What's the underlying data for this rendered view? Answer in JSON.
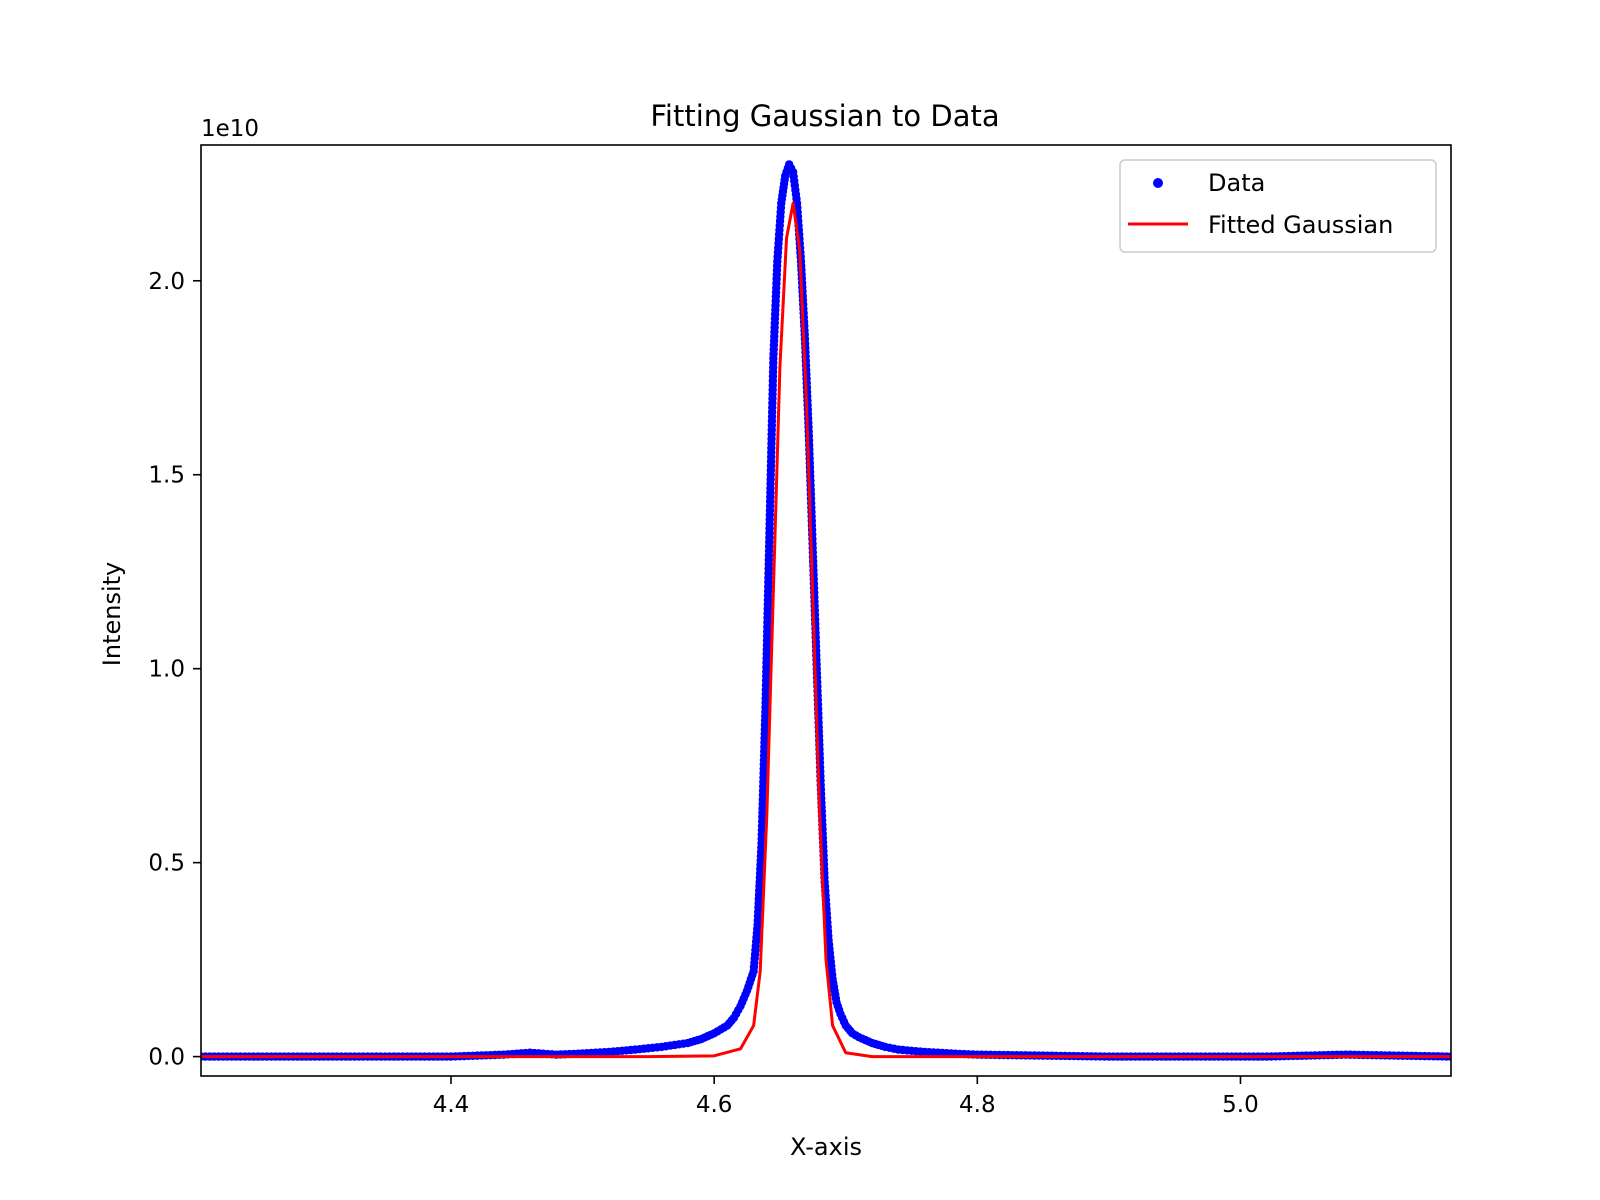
{
  "chart_data": {
    "type": "line",
    "title": "Fitting Gaussian to Data",
    "xlabel": "X-axis",
    "ylabel": "Intensity",
    "y_offset_text": "1e10",
    "xlim": [
      4.21,
      5.16
    ],
    "ylim": [
      -0.05,
      2.35
    ],
    "grid": false,
    "legend_placement": "top-right",
    "x_ticks": [
      4.4,
      4.6,
      4.8,
      5.0
    ],
    "x_tick_labels": [
      "4.4",
      "4.6",
      "4.8",
      "5.0"
    ],
    "y_ticks": [
      0.0,
      0.5,
      1.0,
      1.5,
      2.0
    ],
    "y_tick_labels": [
      "0.0",
      "0.5",
      "1.0",
      "1.5",
      "2.0"
    ],
    "series": [
      {
        "name": "Data",
        "kind": "scatter",
        "color": "#0000ff",
        "x": [
          4.21,
          4.24,
          4.28,
          4.32,
          4.36,
          4.4,
          4.44,
          4.46,
          4.48,
          4.5,
          4.52,
          4.54,
          4.56,
          4.58,
          4.59,
          4.6,
          4.61,
          4.615,
          4.62,
          4.625,
          4.63,
          4.633,
          4.636,
          4.639,
          4.642,
          4.645,
          4.648,
          4.651,
          4.654,
          4.657,
          4.66,
          4.663,
          4.666,
          4.669,
          4.672,
          4.675,
          4.678,
          4.681,
          4.684,
          4.687,
          4.69,
          4.693,
          4.696,
          4.7,
          4.705,
          4.71,
          4.72,
          4.73,
          4.74,
          4.76,
          4.78,
          4.8,
          4.84,
          4.9,
          4.96,
          5.02,
          5.08,
          5.16
        ],
        "y": [
          0.0,
          0.0,
          0.0,
          0.0,
          0.0,
          0.0,
          0.005,
          0.01,
          0.005,
          0.008,
          0.012,
          0.018,
          0.025,
          0.035,
          0.045,
          0.06,
          0.08,
          0.1,
          0.13,
          0.17,
          0.22,
          0.34,
          0.55,
          0.9,
          1.35,
          1.8,
          2.05,
          2.2,
          2.27,
          2.3,
          2.28,
          2.2,
          2.05,
          1.85,
          1.6,
          1.3,
          1.0,
          0.7,
          0.45,
          0.3,
          0.2,
          0.14,
          0.11,
          0.08,
          0.06,
          0.05,
          0.035,
          0.025,
          0.018,
          0.012,
          0.008,
          0.005,
          0.003,
          0.0,
          0.0,
          0.0,
          0.005,
          0.0
        ]
      },
      {
        "name": "Fitted Gaussian",
        "kind": "line",
        "color": "#ff0000",
        "x": [
          4.21,
          4.55,
          4.6,
          4.62,
          4.63,
          4.635,
          4.64,
          4.645,
          4.65,
          4.655,
          4.66,
          4.665,
          4.67,
          4.675,
          4.68,
          4.685,
          4.69,
          4.7,
          4.72,
          4.8,
          5.16
        ],
        "y": [
          0.0,
          0.0,
          0.002,
          0.02,
          0.08,
          0.22,
          0.62,
          1.2,
          1.78,
          2.11,
          2.2,
          2.08,
          1.7,
          1.18,
          0.64,
          0.25,
          0.08,
          0.01,
          0.0,
          0.0,
          0.0
        ]
      }
    ]
  }
}
